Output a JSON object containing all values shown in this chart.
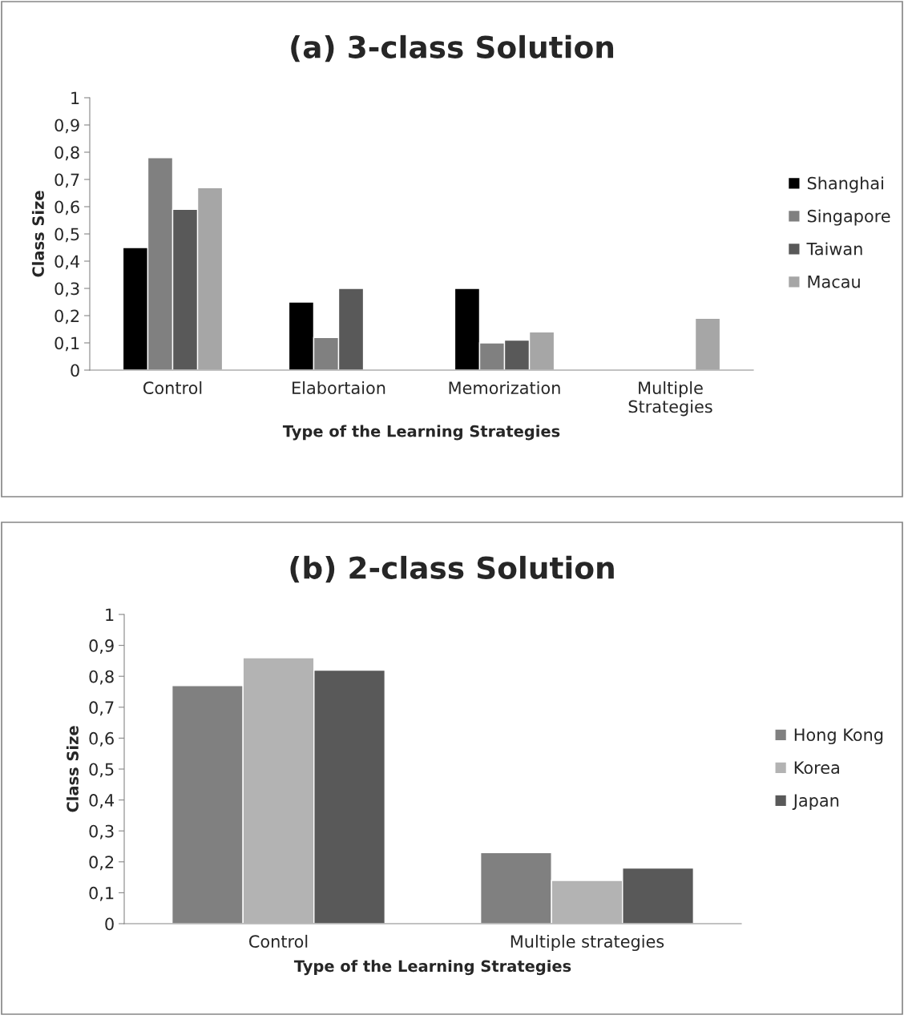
{
  "chart_data": [
    {
      "type": "bar",
      "title": "(a) 3-class Solution",
      "xlabel": "Type of the Learning Strategies",
      "ylabel": "Class Size",
      "categories": [
        "Control",
        "Elabortaion",
        "Memorization",
        "Multiple\nStrategies"
      ],
      "series": [
        {
          "name": "Shanghai",
          "color": "#000000",
          "values": [
            0.45,
            0.25,
            0.3,
            null
          ]
        },
        {
          "name": "Singapore",
          "color": "#808080",
          "values": [
            0.78,
            0.12,
            0.1,
            null
          ]
        },
        {
          "name": "Taiwan",
          "color": "#595959",
          "values": [
            0.59,
            0.3,
            0.11,
            null
          ]
        },
        {
          "name": "Macau",
          "color": "#a6a6a6",
          "values": [
            0.67,
            null,
            0.14,
            0.19
          ]
        }
      ],
      "ylim": [
        0,
        1
      ],
      "yticks": [
        0,
        {
          "value": 0.1,
          "label": "0,1"
        },
        {
          "value": 0.2,
          "label": "0,2"
        },
        {
          "value": 0.3,
          "label": "0,3"
        },
        {
          "value": 0.4,
          "label": "0,4"
        },
        {
          "value": 0.5,
          "label": "0,5"
        },
        {
          "value": 0.6,
          "label": "0,6"
        },
        {
          "value": 0.7,
          "label": "0,7"
        },
        {
          "value": 0.8,
          "label": "0,8"
        },
        {
          "value": 0.9,
          "label": "0,9"
        },
        1
      ],
      "grid": false,
      "legend": "right"
    },
    {
      "type": "bar",
      "title": "(b) 2-class Solution",
      "xlabel": "Type of the Learning Strategies",
      "ylabel": "Class Size",
      "categories": [
        "Control",
        "Multiple strategies"
      ],
      "series": [
        {
          "name": "Hong Kong",
          "color": "#808080",
          "values": [
            0.77,
            0.23
          ]
        },
        {
          "name": "Korea",
          "color": "#b3b3b3",
          "values": [
            0.86,
            0.14
          ]
        },
        {
          "name": "Japan",
          "color": "#595959",
          "values": [
            0.82,
            0.18
          ]
        }
      ],
      "ylim": [
        0,
        1
      ],
      "yticks": [
        0,
        {
          "value": 0.1,
          "label": "0,1"
        },
        {
          "value": 0.2,
          "label": "0,2"
        },
        {
          "value": 0.3,
          "label": "0,3"
        },
        {
          "value": 0.4,
          "label": "0,4"
        },
        {
          "value": 0.5,
          "label": "0,5"
        },
        {
          "value": 0.6,
          "label": "0,6"
        },
        {
          "value": 0.7,
          "label": "0,7"
        },
        {
          "value": 0.8,
          "label": "0,8"
        },
        {
          "value": 0.9,
          "label": "0,9"
        },
        1
      ],
      "grid": false,
      "legend": "right"
    }
  ]
}
